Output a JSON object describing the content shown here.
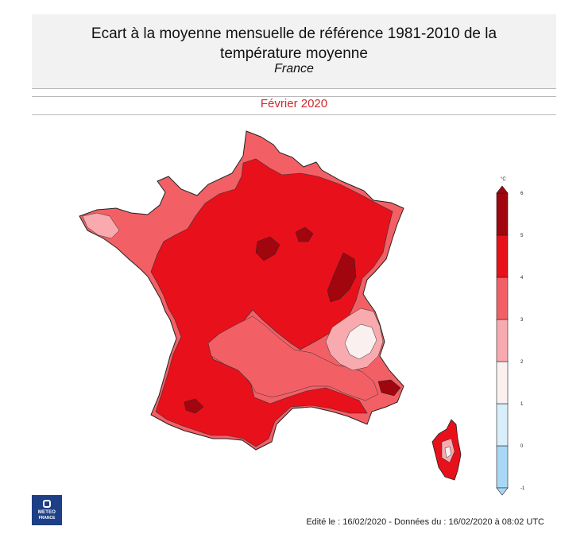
{
  "header": {
    "title_line1": "Ecart à la moyenne mensuelle de référence 1981-2010 de la",
    "title_line2": "température moyenne",
    "subtitle": "France"
  },
  "period": "Février 2020",
  "map": {
    "region": "France",
    "regions_shown": [
      "France métropolitaine",
      "Corse"
    ]
  },
  "legend": {
    "unit": "°C",
    "ticks": [
      "-1",
      "0",
      "1",
      "2",
      "3",
      "4",
      "5",
      "6"
    ],
    "bins": [
      {
        "from": -1,
        "to": 0,
        "color": "#a8d8f5"
      },
      {
        "from": 0,
        "to": 1,
        "color": "#d8eefa"
      },
      {
        "from": 1,
        "to": 2,
        "color": "#faf0f0"
      },
      {
        "from": 2,
        "to": 3,
        "color": "#f8aaae"
      },
      {
        "from": 3,
        "to": 4,
        "color": "#f26066"
      },
      {
        "from": 4,
        "to": 5,
        "color": "#e8101b"
      },
      {
        "from": 5,
        "to": 6,
        "color": "#a1060f"
      }
    ]
  },
  "logo": {
    "line1": "METEO",
    "line2": "FRANCE"
  },
  "footer": "Edité le : 16/02/2020 - Données du : 16/02/2020 à 08:02 UTC"
}
